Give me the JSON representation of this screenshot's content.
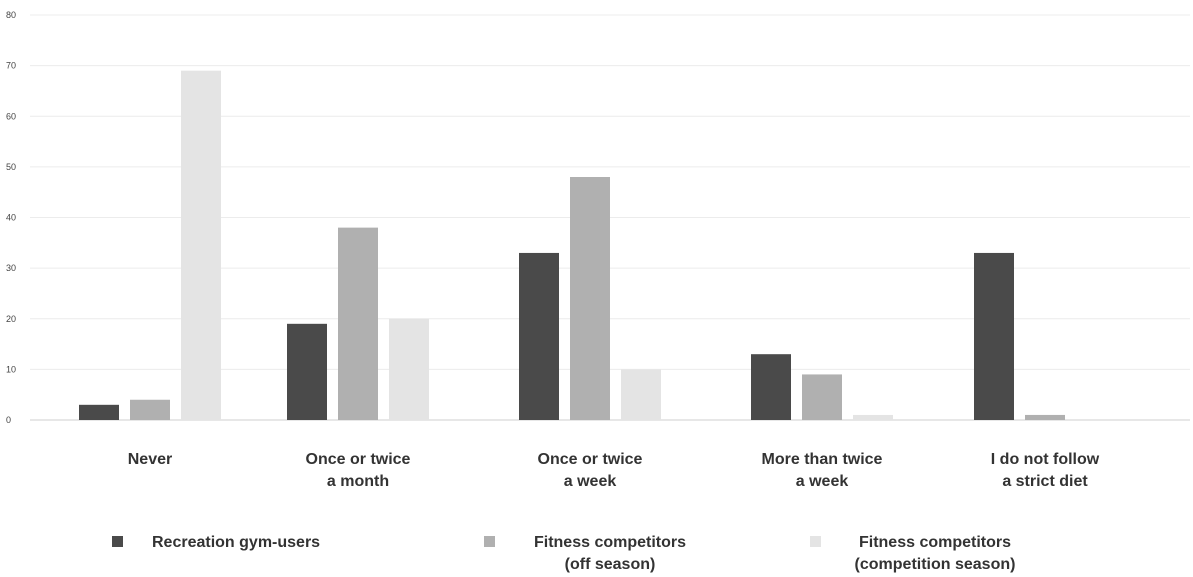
{
  "chart_data": {
    "type": "bar",
    "categories": [
      [
        "Never"
      ],
      [
        "Once or twice",
        "a month"
      ],
      [
        "Once or twice",
        "a week"
      ],
      [
        "More than twice",
        "a week"
      ],
      [
        "I do not follow",
        "a strict diet"
      ]
    ],
    "series": [
      {
        "name": [
          "Recreation gym-users"
        ],
        "color": "#4a4a4a",
        "values": [
          3,
          19,
          33,
          13,
          33
        ]
      },
      {
        "name": [
          "Fitness competitors",
          "(off season)"
        ],
        "color": "#b0b0b0",
        "values": [
          4,
          38,
          48,
          9,
          1
        ]
      },
      {
        "name": [
          "Fitness competitors",
          "(competition season)"
        ],
        "color": "#e4e4e4",
        "values": [
          69,
          20,
          10,
          1,
          0
        ]
      }
    ],
    "y_ticks": [
      "0",
      "10",
      "20",
      "30",
      "40",
      "50",
      "60",
      "70",
      "80"
    ],
    "ylim": [
      0,
      80
    ],
    "grid": true,
    "legend_position": "bottom"
  }
}
